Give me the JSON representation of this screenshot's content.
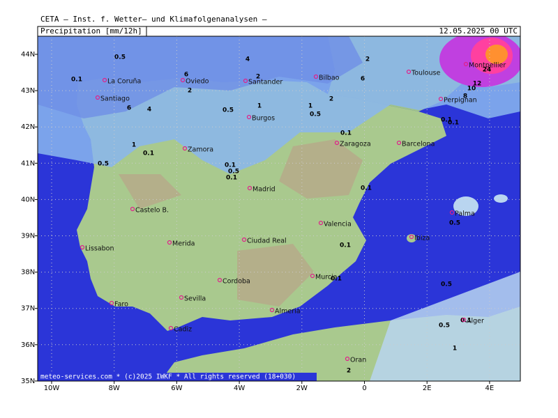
{
  "header": {
    "title": "CETA – Inst. f. Wetter– und Klimafolgenanalysen –",
    "product": "Precipitation  [mm/12h]",
    "valid": "12.05.2025 00 UTC"
  },
  "axes": {
    "lat": [
      "44N",
      "43N",
      "42N",
      "41N",
      "40N",
      "39N",
      "38N",
      "37N",
      "36N",
      "35N"
    ],
    "lon": [
      "10W",
      "8W",
      "6W",
      "4W",
      "2W",
      "0",
      "2E",
      "4E"
    ]
  },
  "cities": [
    "La Coruña",
    "Oviedo",
    "Santander",
    "Bilbao",
    "Toulouse",
    "Montpellier",
    "Perpignan",
    "Santiago",
    "Burgos",
    "Zaragoza",
    "Barcelona",
    "Zamora",
    "Madrid",
    "Castelo B.",
    "Palma",
    "Valencia",
    "Ibiza",
    "Lissabon",
    "Merida",
    "Ciudad Real",
    "Murcia",
    "Cordoba",
    "Sevilla",
    "Faro",
    "Almeria",
    "Cadiz",
    "Alger",
    "Oran"
  ],
  "contour_labels": [
    "0.5",
    "0.1",
    "6",
    "2",
    "4",
    "2",
    "6",
    "2",
    "1",
    "0.5",
    "1",
    "0.5",
    "2",
    "4",
    "6",
    "24",
    "10",
    "12",
    "8",
    "0.1",
    "0.5",
    "0.1",
    "1",
    "0.1",
    "0.5",
    "0.1",
    "0.1",
    "0.5",
    "0.1",
    "0.1",
    "0.5",
    "0.1",
    "0.5",
    "1",
    "2",
    "0.1",
    "0.1"
  ],
  "footer": "meteo-services.com * (c)2025 IWKF * All rights reserved (18+030)"
}
